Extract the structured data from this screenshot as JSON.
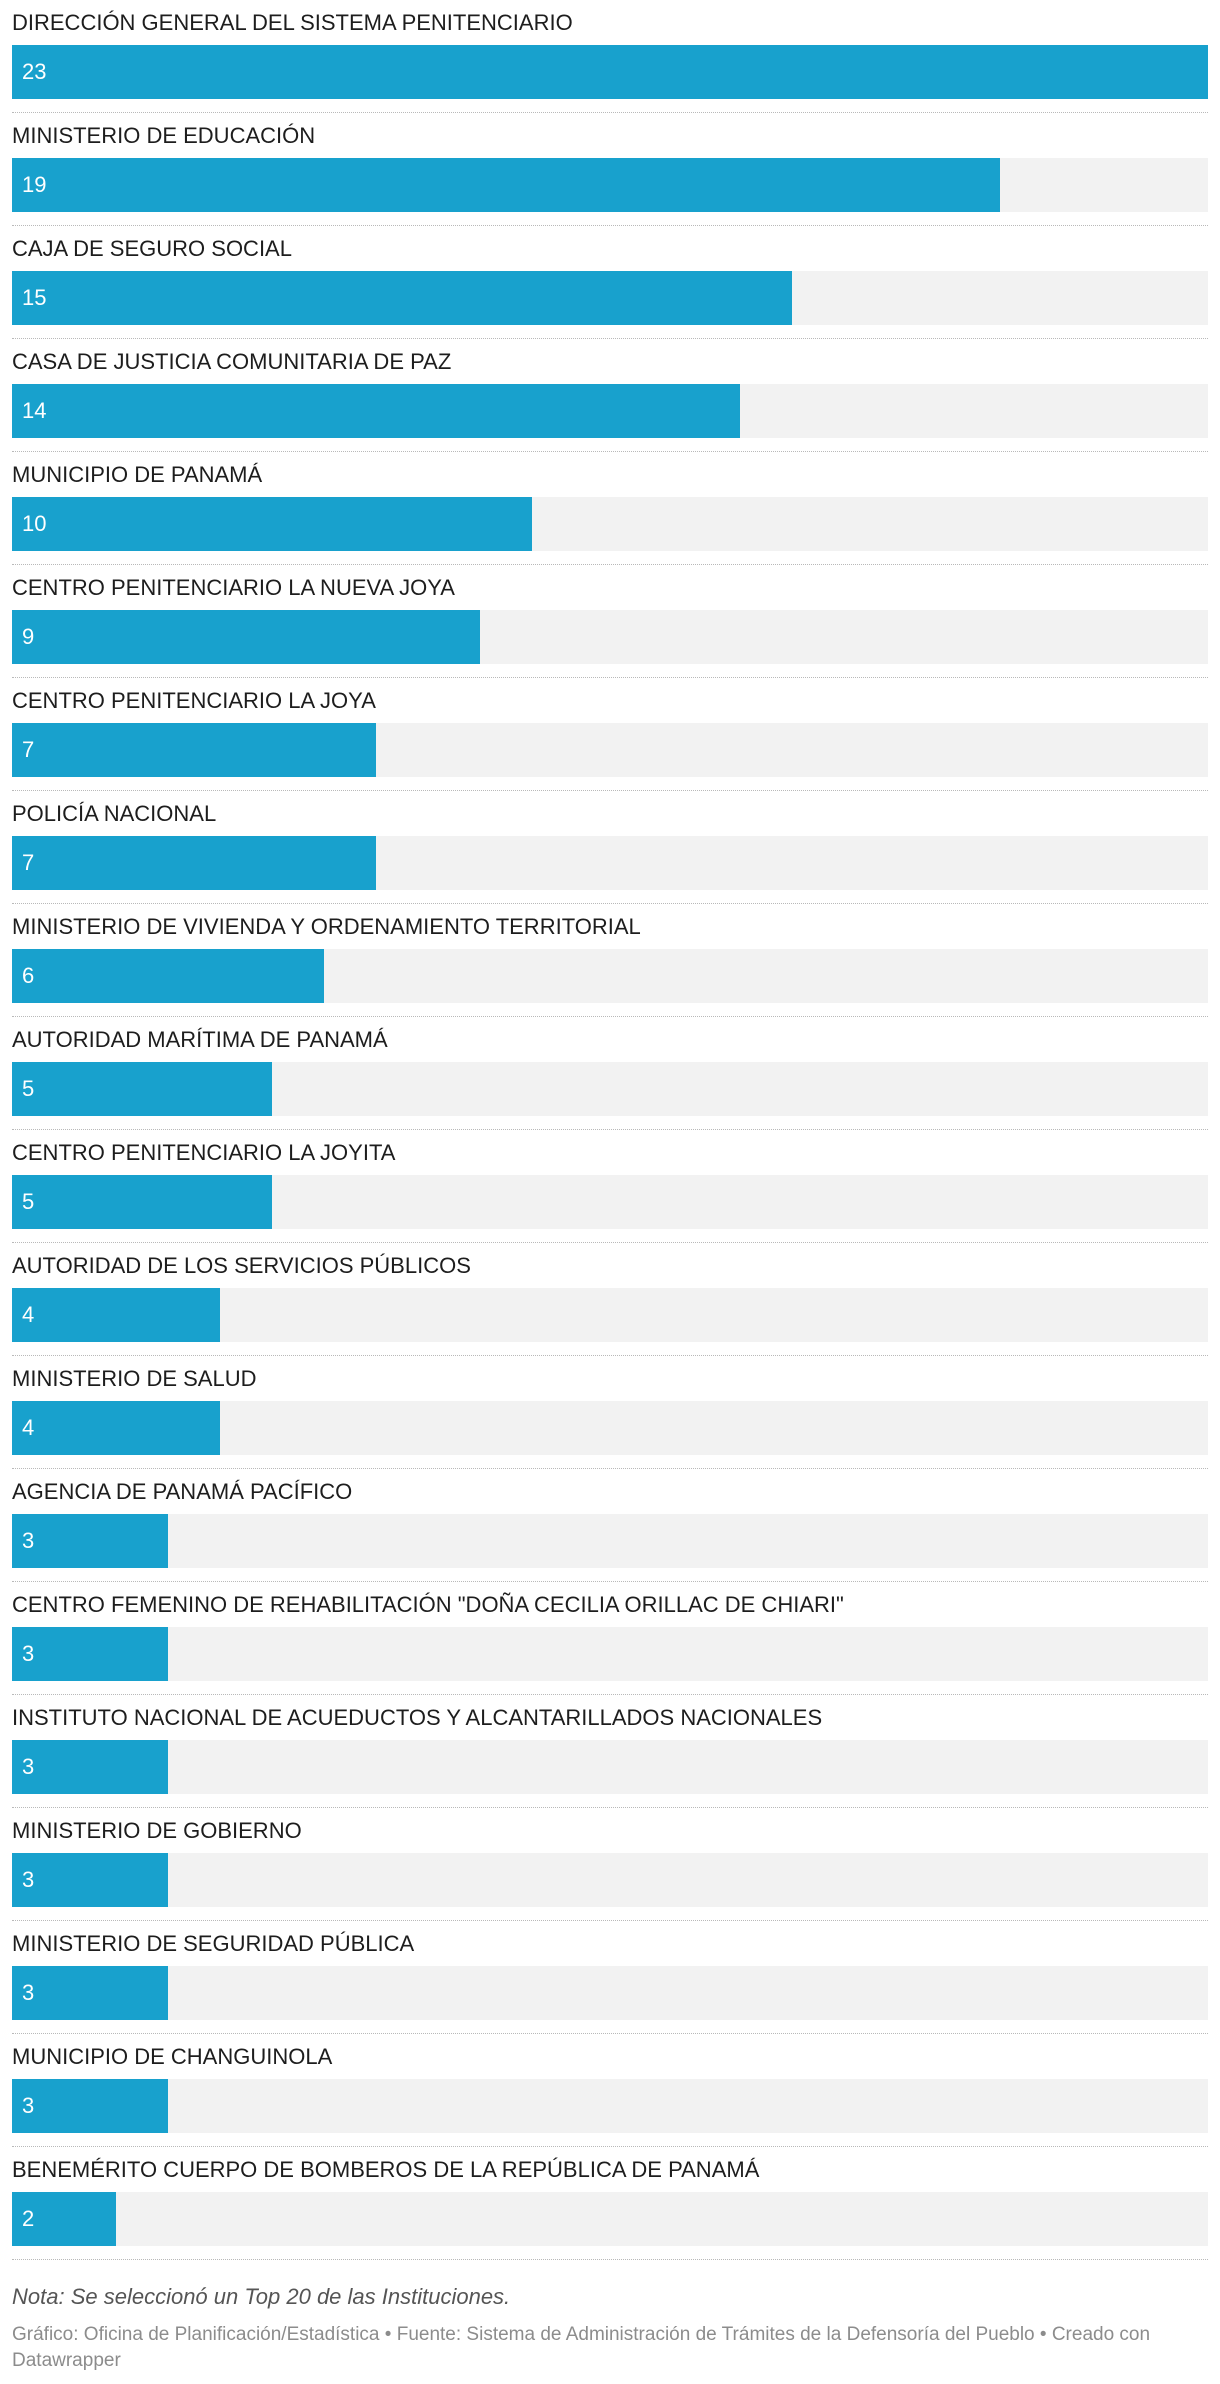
{
  "chart_data": {
    "type": "bar",
    "orientation": "horizontal",
    "categories": [
      "DIRECCIÓN GENERAL DEL SISTEMA PENITENCIARIO",
      "MINISTERIO DE EDUCACIÓN",
      "CAJA DE SEGURO SOCIAL",
      "CASA DE JUSTICIA COMUNITARIA DE PAZ",
      "MUNICIPIO DE PANAMÁ",
      "CENTRO PENITENCIARIO LA NUEVA JOYA",
      "CENTRO PENITENCIARIO LA JOYA",
      "POLICÍA NACIONAL",
      "MINISTERIO DE VIVIENDA Y ORDENAMIENTO TERRITORIAL",
      "AUTORIDAD MARÍTIMA DE PANAMÁ",
      "CENTRO PENITENCIARIO LA JOYITA",
      "AUTORIDAD DE LOS SERVICIOS PÚBLICOS",
      "MINISTERIO DE SALUD",
      "AGENCIA DE PANAMÁ PACÍFICO",
      "CENTRO FEMENINO DE REHABILITACIÓN \"DOÑA CECILIA ORILLAC DE CHIARI\"",
      "INSTITUTO NACIONAL DE ACUEDUCTOS Y ALCANTARILLADOS NACIONALES",
      "MINISTERIO DE GOBIERNO",
      "MINISTERIO DE SEGURIDAD PÚBLICA",
      "MUNICIPIO DE CHANGUINOLA",
      "BENEMÉRITO CUERPO DE BOMBEROS DE LA REPÚBLICA DE PANAMÁ"
    ],
    "values": [
      23,
      19,
      15,
      14,
      10,
      9,
      7,
      7,
      6,
      5,
      5,
      4,
      4,
      3,
      3,
      3,
      3,
      3,
      3,
      2
    ],
    "xlim": [
      0,
      23
    ],
    "bar_color": "#18a1cd",
    "track_color": "#f2f2f2",
    "grid": false,
    "legend": "none"
  },
  "note": "Nota: Se seleccionó un Top 20 de las Instituciones.",
  "footer": "Gráfico: Oficina de Planificación/Estadística • Fuente: Sistema de Administración de Trámites de la Defensoría del Pueblo • Creado con Datawrapper"
}
